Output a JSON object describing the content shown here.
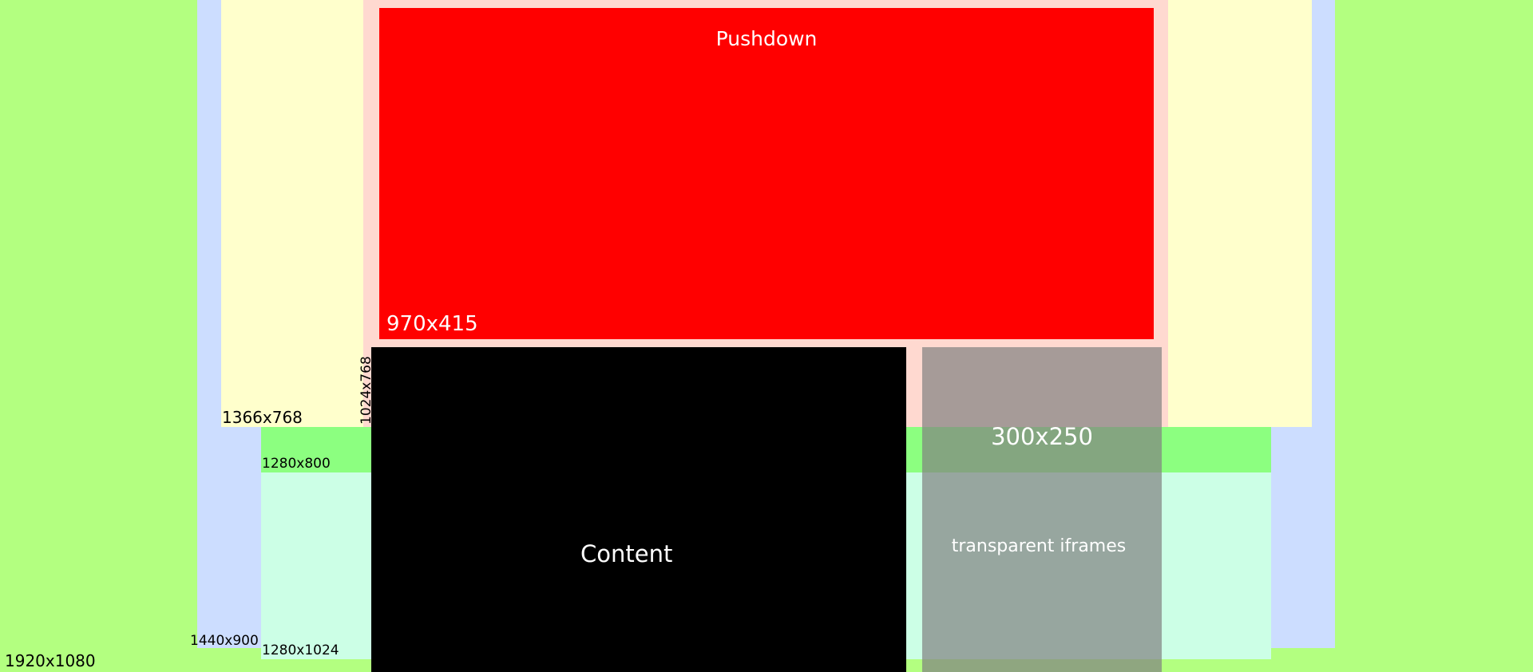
{
  "colors": {
    "background": "#b3ff80",
    "zone_1440": "#ccddff",
    "zone_1366": "#ffffcc",
    "zone_1280x800": "#8cff80",
    "zone_1280x1024": "#ccffe6",
    "zone_1024": "#ffd9d0",
    "pushdown": "#ff0000",
    "content": "#000000",
    "iframe": "#a3a3a3"
  },
  "labels": {
    "resolution_1920": "1920x1080",
    "resolution_1440": "1440x900",
    "resolution_1366": "1366x768",
    "resolution_1280_800": "1280x800",
    "resolution_1280_1024": "1280x1024",
    "resolution_1024": "1024x768"
  },
  "pushdown": {
    "title": "Pushdown",
    "size": "970x415"
  },
  "content": {
    "label": "Content"
  },
  "ad": {
    "size": "300x250",
    "caption": "transparent iframes"
  }
}
